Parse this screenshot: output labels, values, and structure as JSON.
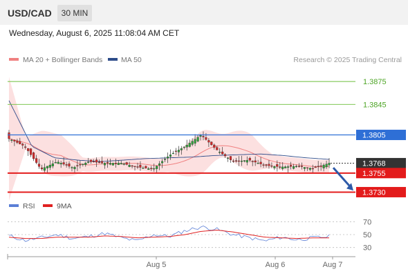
{
  "header": {
    "symbol": "USD/CAD",
    "timeframe": "30 MIN"
  },
  "datetime": "Wednesday, August 6, 2025 11:08:04 AM CET",
  "legend": {
    "items": [
      {
        "label": "MA 20 + Bollinger Bands",
        "color": "#f08080"
      },
      {
        "label": "MA 50",
        "color": "#2e4c8a"
      }
    ],
    "source": "Research © 2025 Trading Central"
  },
  "rsi_legend": {
    "items": [
      {
        "label": "RSI",
        "color": "#5b7fd6"
      },
      {
        "label": "9MA",
        "color": "#e02020"
      }
    ]
  },
  "chart_data": [
    {
      "type": "candlestick",
      "title": "USD/CAD",
      "ylim": [
        1.3725,
        1.3895
      ],
      "levels": [
        {
          "value": 1.3875,
          "label": "1.3875",
          "color": "#6cbf3a",
          "kind": "target"
        },
        {
          "value": 1.3845,
          "label": "1.3845",
          "color": "#6cbf3a",
          "kind": "target"
        },
        {
          "value": 1.3805,
          "label": "1.3805",
          "color": "#2e6fd6",
          "kind": "pivot"
        },
        {
          "value": 1.3768,
          "label": "1.3768",
          "color": "#333333",
          "kind": "last-price"
        },
        {
          "value": 1.3755,
          "label": "1.3755",
          "color": "#e31b1b",
          "kind": "support"
        },
        {
          "value": 1.373,
          "label": "1.3730",
          "color": "#e31b1b",
          "kind": "support"
        }
      ],
      "xticks": [
        "Aug 5",
        "Aug 6",
        "Aug 7"
      ],
      "key_closes": [
        1.38,
        1.379,
        1.376,
        1.377,
        1.3762,
        1.377,
        1.3768,
        1.3768,
        1.3763,
        1.376,
        1.3778,
        1.379,
        1.3805,
        1.3785,
        1.377,
        1.3772,
        1.3765,
        1.3763,
        1.3764,
        1.3761,
        1.3768
      ],
      "ma50": [
        1.385,
        1.379,
        1.3775,
        1.3772,
        1.377,
        1.3772,
        1.3774,
        1.3775,
        1.3776,
        1.3778,
        1.3779,
        1.378,
        1.3778,
        1.3775,
        1.3773
      ],
      "forecast_arrow": {
        "from": 1.3762,
        "to": 1.3732
      }
    },
    {
      "type": "line",
      "title": "RSI",
      "ylim": [
        20,
        80
      ],
      "yticks": [
        30,
        50,
        70
      ],
      "series": [
        {
          "name": "RSI",
          "values": [
            48,
            41,
            45,
            50,
            44,
            47,
            52,
            45,
            40,
            50,
            47,
            56,
            62,
            58,
            50,
            45,
            40,
            46,
            42,
            45,
            47
          ]
        },
        {
          "name": "9MA",
          "values": [
            46,
            44,
            44,
            46,
            46,
            46,
            48,
            47,
            45,
            46,
            47,
            50,
            55,
            57,
            54,
            50,
            46,
            45,
            44,
            45,
            45
          ]
        }
      ]
    }
  ]
}
